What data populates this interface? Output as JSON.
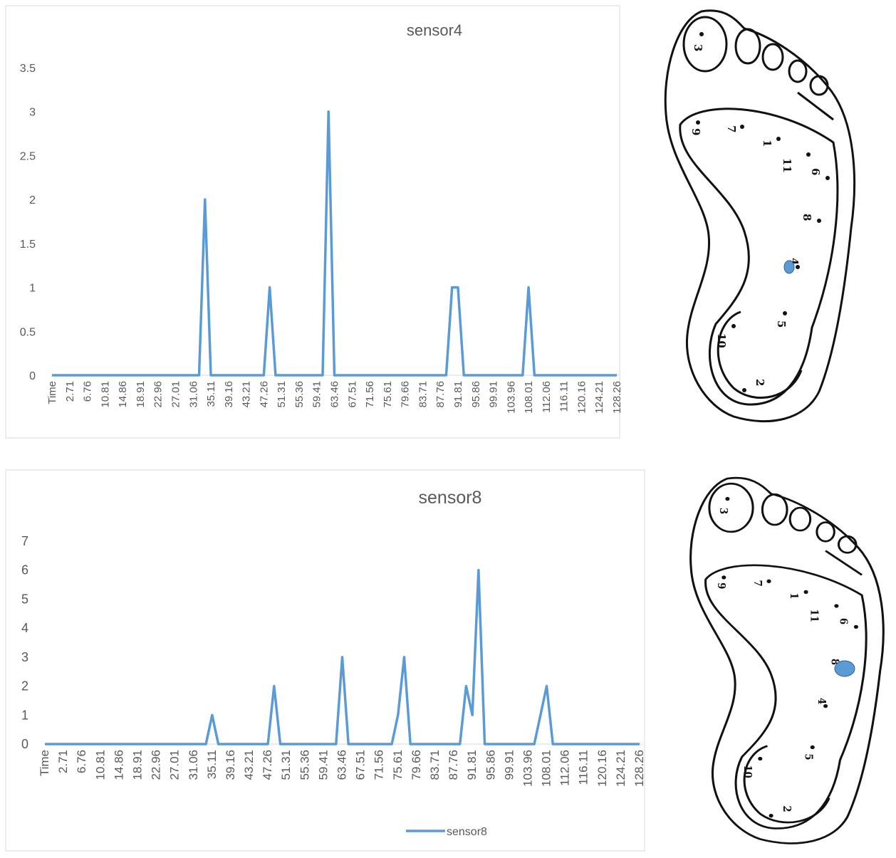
{
  "chart_data": [
    {
      "type": "line",
      "title": "sensor4",
      "color": "#5b9bd5",
      "categories": [
        "Time",
        null,
        null,
        "2.71",
        null,
        null,
        "6.76",
        null,
        null,
        "10.81",
        null,
        null,
        "14.86",
        null,
        null,
        "18.91",
        null,
        null,
        "22.96",
        null,
        null,
        "27.01",
        null,
        null,
        "31.06",
        null,
        null,
        "35.11",
        null,
        null,
        "39.16",
        null,
        null,
        "43.21",
        null,
        null,
        "47.26",
        null,
        null,
        "51.31",
        null,
        null,
        "55.36",
        null,
        null,
        "59.41",
        null,
        null,
        "63.46",
        null,
        null,
        "67.51",
        null,
        null,
        "71.56",
        null,
        null,
        "75.61",
        null,
        null,
        "79.66",
        null,
        null,
        "83.71",
        null,
        null,
        "87.76",
        null,
        null,
        "91.81",
        null,
        null,
        "95.86",
        null,
        null,
        "99.91",
        null,
        null,
        "103.96",
        null,
        null,
        "108.01",
        null,
        null,
        "112.06",
        null,
        null,
        "116.11",
        null,
        null,
        "120.16",
        null,
        null,
        "124.21",
        null,
        null,
        "128.26"
      ],
      "values": [
        0,
        0,
        0,
        0,
        0,
        0,
        0,
        0,
        0,
        0,
        0,
        0,
        0,
        0,
        0,
        0,
        0,
        0,
        0,
        0,
        0,
        0,
        0,
        0,
        0,
        0,
        2,
        0,
        0,
        0,
        0,
        0,
        0,
        0,
        0,
        0,
        0,
        1,
        0,
        0,
        0,
        0,
        0,
        0,
        0,
        0,
        0,
        3,
        0,
        0,
        0,
        0,
        0,
        0,
        0,
        0,
        0,
        0,
        0,
        0,
        0,
        0,
        0,
        0,
        0,
        0,
        0,
        0,
        1,
        1,
        0,
        0,
        0,
        0,
        0,
        0,
        0,
        0,
        0,
        0,
        0,
        1,
        0,
        0,
        0,
        0,
        0,
        0,
        0,
        0,
        0,
        0,
        0,
        0,
        0,
        0,
        0
      ],
      "ylim": [
        0,
        3.5
      ],
      "yticks": [
        0,
        0.5,
        1,
        1.5,
        2,
        2.5,
        3,
        3.5
      ],
      "grid": false
    },
    {
      "type": "line",
      "title": "sensor8",
      "categories": [
        "Time",
        null,
        null,
        "2.71",
        null,
        null,
        "6.76",
        null,
        null,
        "10.81",
        null,
        null,
        "14.86",
        null,
        null,
        "18.91",
        null,
        null,
        "22.96",
        null,
        null,
        "27.01",
        null,
        null,
        "31.06",
        null,
        null,
        "35.11",
        null,
        null,
        "39.16",
        null,
        null,
        "43.21",
        null,
        null,
        "47.26",
        null,
        null,
        "51.31",
        null,
        null,
        "55.36",
        null,
        null,
        "59.41",
        null,
        null,
        "63.46",
        null,
        null,
        "67.51",
        null,
        null,
        "71.56",
        null,
        null,
        "75.61",
        null,
        null,
        "79.66",
        null,
        null,
        "83.71",
        null,
        null,
        "87.76",
        null,
        null,
        "91.81",
        null,
        null,
        "95.86",
        null,
        null,
        "99.91",
        null,
        null,
        "103.96",
        null,
        null,
        "108.01",
        null,
        null,
        "112.06",
        null,
        null,
        "116.11",
        null,
        null,
        "120.16",
        null,
        null,
        "124.21",
        null,
        null,
        "128.26"
      ],
      "series": [
        {
          "name": "sensor8",
          "color": "#5b9bd5",
          "values": [
            0,
            0,
            0,
            0,
            0,
            0,
            0,
            0,
            0,
            0,
            0,
            0,
            0,
            0,
            0,
            0,
            0,
            0,
            0,
            0,
            0,
            0,
            0,
            0,
            0,
            0,
            0,
            1,
            0,
            0,
            0,
            0,
            0,
            0,
            0,
            0,
            0,
            2,
            0,
            0,
            0,
            0,
            0,
            0,
            0,
            0,
            0,
            0,
            3,
            0,
            0,
            0,
            0,
            0,
            0,
            0,
            0,
            1,
            3,
            0,
            0,
            0,
            0,
            0,
            0,
            0,
            0,
            0,
            2,
            1,
            6,
            0,
            0,
            0,
            0,
            0,
            0,
            0,
            0,
            0,
            1,
            2,
            0,
            0,
            0,
            0,
            0,
            0,
            0,
            0,
            0,
            0,
            0,
            0,
            0,
            0,
            0
          ]
        }
      ],
      "ylim": [
        0,
        7
      ],
      "yticks": [
        0,
        1,
        2,
        3,
        4,
        5,
        6,
        7
      ],
      "grid": false,
      "legend": "bottom"
    }
  ],
  "foot_labels": [
    "3",
    "9",
    "7",
    "1",
    "11",
    "6",
    "8",
    "4",
    "5",
    "10",
    "2"
  ]
}
